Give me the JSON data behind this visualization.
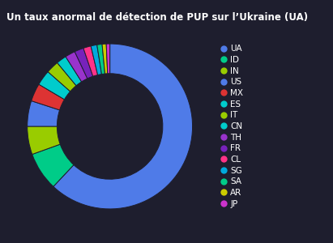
{
  "title": "Un taux anormal de détection de PUP sur l’Ukraine (UA)",
  "background_color": "#1e1e2e",
  "labels": [
    "UA",
    "ID",
    "IN",
    "US",
    "MX",
    "ES",
    "IT",
    "CN",
    "TH",
    "FR",
    "CL",
    "SG",
    "SA",
    "AR",
    "JP"
  ],
  "values": [
    62,
    7.5,
    5.5,
    5.0,
    3.5,
    3.0,
    2.5,
    2.0,
    2.0,
    1.8,
    1.5,
    1.2,
    1.0,
    0.8,
    0.7
  ],
  "colors": [
    "#4f7be8",
    "#00cc88",
    "#99cc00",
    "#4f7be8",
    "#dd3333",
    "#00cccc",
    "#99cc00",
    "#00cccc",
    "#9933cc",
    "#7722bb",
    "#ff3388",
    "#00aadd",
    "#00cc88",
    "#cccc00",
    "#cc33cc"
  ],
  "text_color": "#ffffff",
  "title_fontsize": 8.5,
  "legend_fontsize": 7.5,
  "donut_width": 0.36
}
